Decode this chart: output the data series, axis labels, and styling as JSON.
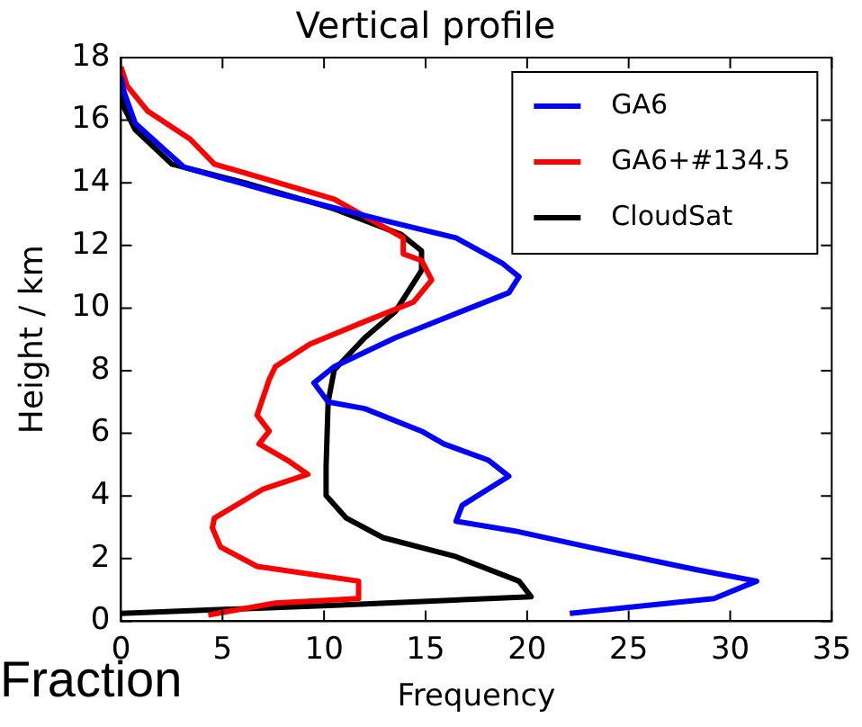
{
  "chart_data": {
    "type": "line",
    "title": "Vertical profile",
    "xlabel": "Frequency",
    "ylabel": "Height / km",
    "annotations": [
      "Fraction"
    ],
    "xlim": [
      0,
      35
    ],
    "xticks": [
      0,
      5,
      10,
      15,
      20,
      25,
      30,
      35
    ],
    "ylim": [
      0,
      18
    ],
    "yticks": [
      0,
      2,
      4,
      6,
      8,
      10,
      12,
      14,
      16,
      18
    ],
    "grid": false,
    "legend": "top right",
    "series": [
      {
        "name": "GA6",
        "color": "#0000ff",
        "x": [
          22.1,
          29.2,
          31.3,
          28.3,
          23.0,
          19.4,
          16.5,
          16.8,
          19.1,
          18.1,
          15.9,
          14.8,
          12.0,
          10.2,
          9.5,
          10.5,
          13.5,
          17.1,
          19.1,
          19.6,
          18.8,
          16.5,
          13.2,
          7.6,
          3.1,
          1.9,
          0.7,
          0.15,
          0
        ],
        "values": [
          0.25,
          0.72,
          1.28,
          1.65,
          2.37,
          2.88,
          3.19,
          3.7,
          4.63,
          5.14,
          5.66,
          6.07,
          6.79,
          7.0,
          7.61,
          8.13,
          9.05,
          9.98,
          10.49,
          11.0,
          11.42,
          12.24,
          12.76,
          13.68,
          14.5,
          15.2,
          15.9,
          16.9,
          17.4
        ]
      },
      {
        "name": "GA6+#134.5",
        "color": "#ff0000",
        "x": [
          4.3,
          7.6,
          11.7,
          11.7,
          6.7,
          4.9,
          4.5,
          4.6,
          7.0,
          9.2,
          8.2,
          6.8,
          7.3,
          6.7,
          7.3,
          7.6,
          9.3,
          12.0,
          14.4,
          15.3,
          14.8,
          13.9,
          13.9,
          10.5,
          4.6,
          3.4,
          1.3,
          0.3,
          0
        ],
        "values": [
          0.2,
          0.58,
          0.72,
          1.28,
          1.75,
          2.37,
          2.98,
          3.29,
          4.22,
          4.69,
          5.14,
          5.66,
          6.07,
          6.58,
          7.72,
          8.13,
          8.85,
          9.57,
          10.19,
          10.9,
          11.52,
          11.73,
          12.24,
          13.48,
          14.6,
          15.4,
          16.3,
          17.1,
          17.7
        ]
      },
      {
        "name": "CloudSat",
        "color": "#000000",
        "x": [
          0,
          10.5,
          20.2,
          19.6,
          16.5,
          12.9,
          11.1,
          10.1,
          10.1,
          10.2,
          10.5,
          12.0,
          13.5,
          14.8,
          14.8,
          13.8,
          10.5,
          6.1,
          2.5,
          0.7,
          0.15,
          0
        ],
        "values": [
          0.25,
          0.51,
          0.78,
          1.28,
          2.06,
          2.67,
          3.29,
          4.01,
          4.94,
          7.0,
          8.02,
          9.05,
          9.88,
          11.2,
          11.83,
          12.35,
          13.17,
          14.0,
          14.6,
          15.7,
          16.4,
          17.1
        ]
      }
    ]
  }
}
